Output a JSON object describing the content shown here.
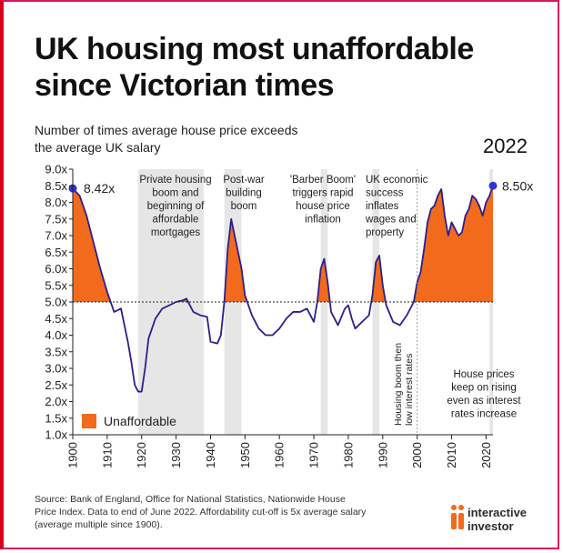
{
  "header": {
    "title_line1": "UK housing most unaffordable",
    "title_line2": "since Victorian times",
    "subtitle_line1": "Number of times average house price exceeds",
    "subtitle_line2": "the average UK salary",
    "year_label": "2022"
  },
  "colors": {
    "frame": "#d6001c",
    "line": "#2a1f8f",
    "fill_unaffordable": "#f26a1b",
    "shade_band": "#e6e6e6",
    "text": "#111111"
  },
  "chart_data": {
    "type": "area",
    "xlim": [
      1900,
      2022
    ],
    "ylim": [
      1.0,
      9.0
    ],
    "threshold": 5.0,
    "xticks": [
      1900,
      1910,
      1920,
      1930,
      1940,
      1950,
      1960,
      1970,
      1980,
      1990,
      2000,
      2010,
      2020
    ],
    "yticks": [
      1.0,
      1.5,
      2.0,
      2.5,
      3.0,
      3.5,
      4.0,
      4.5,
      5.0,
      5.5,
      6.0,
      6.5,
      7.0,
      7.5,
      8.0,
      8.5,
      9.0
    ],
    "ytick_labels": [
      "1.0x",
      "1.5x",
      "2.0x",
      "2.5x",
      "3.0x",
      "3.5x",
      "4.0x",
      "4.5x",
      "5.0x",
      "5.5x",
      "6.0x",
      "6.5x",
      "7.0x",
      "7.5x",
      "8.0x",
      "8.5x",
      "9.0x"
    ],
    "grid": false,
    "shaded_periods": [
      [
        1919,
        1938
      ],
      [
        1944,
        1949
      ],
      [
        1972,
        1974
      ],
      [
        1987,
        1989
      ],
      [
        2021,
        2022
      ]
    ],
    "points": [
      [
        1900,
        8.42
      ],
      [
        1902,
        8.2
      ],
      [
        1904,
        7.6
      ],
      [
        1906,
        6.8
      ],
      [
        1908,
        6.0
      ],
      [
        1910,
        5.3
      ],
      [
        1912,
        4.7
      ],
      [
        1914,
        4.8
      ],
      [
        1916,
        3.8
      ],
      [
        1917,
        3.2
      ],
      [
        1918,
        2.5
      ],
      [
        1919,
        2.3
      ],
      [
        1920,
        2.3
      ],
      [
        1921,
        3.0
      ],
      [
        1922,
        3.9
      ],
      [
        1924,
        4.5
      ],
      [
        1926,
        4.8
      ],
      [
        1928,
        4.9
      ],
      [
        1930,
        5.0
      ],
      [
        1932,
        5.05
      ],
      [
        1933,
        5.1
      ],
      [
        1935,
        4.7
      ],
      [
        1937,
        4.6
      ],
      [
        1939,
        4.55
      ],
      [
        1940,
        3.8
      ],
      [
        1942,
        3.75
      ],
      [
        1943,
        4.0
      ],
      [
        1944,
        5.0
      ],
      [
        1945,
        6.6
      ],
      [
        1946,
        7.5
      ],
      [
        1947,
        7.0
      ],
      [
        1948,
        6.5
      ],
      [
        1949,
        6.0
      ],
      [
        1950,
        5.2
      ],
      [
        1952,
        4.6
      ],
      [
        1954,
        4.2
      ],
      [
        1956,
        4.0
      ],
      [
        1958,
        4.0
      ],
      [
        1960,
        4.2
      ],
      [
        1962,
        4.5
      ],
      [
        1964,
        4.7
      ],
      [
        1966,
        4.7
      ],
      [
        1968,
        4.8
      ],
      [
        1970,
        4.4
      ],
      [
        1971,
        5.0
      ],
      [
        1972,
        6.0
      ],
      [
        1973,
        6.3
      ],
      [
        1974,
        5.6
      ],
      [
        1975,
        4.7
      ],
      [
        1977,
        4.3
      ],
      [
        1979,
        4.8
      ],
      [
        1980,
        4.9
      ],
      [
        1981,
        4.5
      ],
      [
        1982,
        4.2
      ],
      [
        1984,
        4.4
      ],
      [
        1986,
        4.6
      ],
      [
        1987,
        5.2
      ],
      [
        1988,
        6.2
      ],
      [
        1989,
        6.4
      ],
      [
        1990,
        5.5
      ],
      [
        1991,
        4.9
      ],
      [
        1993,
        4.4
      ],
      [
        1995,
        4.3
      ],
      [
        1997,
        4.6
      ],
      [
        1999,
        5.0
      ],
      [
        2000,
        5.6
      ],
      [
        2001,
        5.9
      ],
      [
        2002,
        6.6
      ],
      [
        2003,
        7.4
      ],
      [
        2004,
        7.8
      ],
      [
        2005,
        7.9
      ],
      [
        2006,
        8.2
      ],
      [
        2007,
        8.4
      ],
      [
        2008,
        7.6
      ],
      [
        2009,
        7.0
      ],
      [
        2010,
        7.4
      ],
      [
        2011,
        7.2
      ],
      [
        2012,
        7.0
      ],
      [
        2013,
        7.1
      ],
      [
        2014,
        7.6
      ],
      [
        2015,
        7.8
      ],
      [
        2016,
        8.2
      ],
      [
        2017,
        8.1
      ],
      [
        2018,
        7.9
      ],
      [
        2019,
        7.6
      ],
      [
        2020,
        8.0
      ],
      [
        2021,
        8.2
      ],
      [
        2022,
        8.5
      ]
    ],
    "start_label": "8.42x",
    "end_label": "8.50x",
    "legend_label": "Unaffordable",
    "annotations": {
      "private_housing": [
        "Private housing",
        "boom and",
        "beginning of",
        "affordable",
        "mortgages"
      ],
      "post_war": [
        "Post-war",
        "building",
        "boom"
      ],
      "barber_boom": [
        "'Barber Boom'",
        "triggers rapid",
        "house price",
        "inflation"
      ],
      "uk_economic": [
        "UK economic",
        "success",
        "inflates",
        "wages and",
        "property"
      ],
      "housing_boom_vertical": [
        "Housing boom then",
        "low interest rates"
      ],
      "keep_rising": [
        "House prices",
        "keep on rising",
        "even as interest",
        "rates increase"
      ]
    }
  },
  "footer": {
    "source_line1": "Source: Bank of England, Office for National Statistics, Nationwide House",
    "source_line2": "Price Index. Data to end of June 2022. Affordability cut-off is 5x average salary",
    "source_line3": "(average multiple since 1900).",
    "brand_line1": "interactive",
    "brand_line2": "investor"
  }
}
